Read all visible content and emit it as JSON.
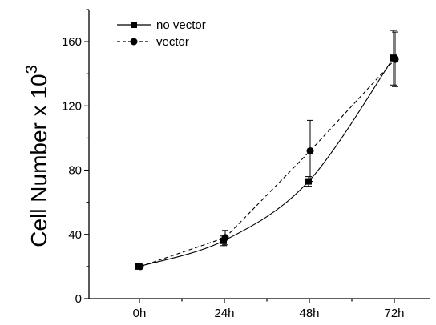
{
  "chart_data": {
    "type": "line",
    "categories": [
      "0h",
      "24h",
      "48h",
      "72h"
    ],
    "ylabel_base": "Cell Number x 10",
    "ylabel_exponent": "3",
    "ylim": [
      0,
      180
    ],
    "yticks": [
      "0",
      "40",
      "80",
      "120",
      "160"
    ],
    "grid": false,
    "legend_position": "top-left",
    "series": [
      {
        "name": "no vector",
        "marker": "square",
        "line_style": "solid",
        "values": [
          20,
          36,
          73,
          150
        ],
        "error": [
          1.5,
          3,
          3,
          17
        ]
      },
      {
        "name": "vector",
        "marker": "circle",
        "line_style": "dashed",
        "values": [
          20,
          38,
          92,
          149
        ],
        "error": [
          1.5,
          4.5,
          19,
          17
        ]
      }
    ]
  }
}
